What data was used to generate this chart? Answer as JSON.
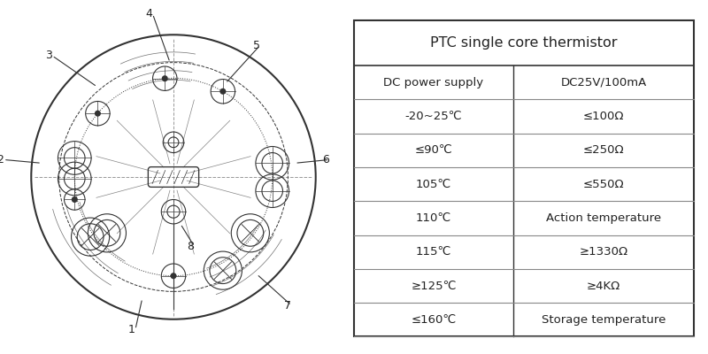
{
  "table_title": "PTC single core thermistor",
  "table_col1": [
    "DC power supply",
    "-20~25℃",
    "≤90℃",
    "105℃",
    "110℃",
    "115℃",
    "≥125℃",
    "≤160℃"
  ],
  "table_col2": [
    "DC25V/100mA",
    "≤100Ω",
    "≤250Ω",
    "≤550Ω",
    "Action temperature",
    "≥1330Ω",
    "≥4KΩ",
    "Storage temperature"
  ],
  "bg_color": "#ffffff",
  "line_color": "#333333",
  "text_color": "#222222"
}
